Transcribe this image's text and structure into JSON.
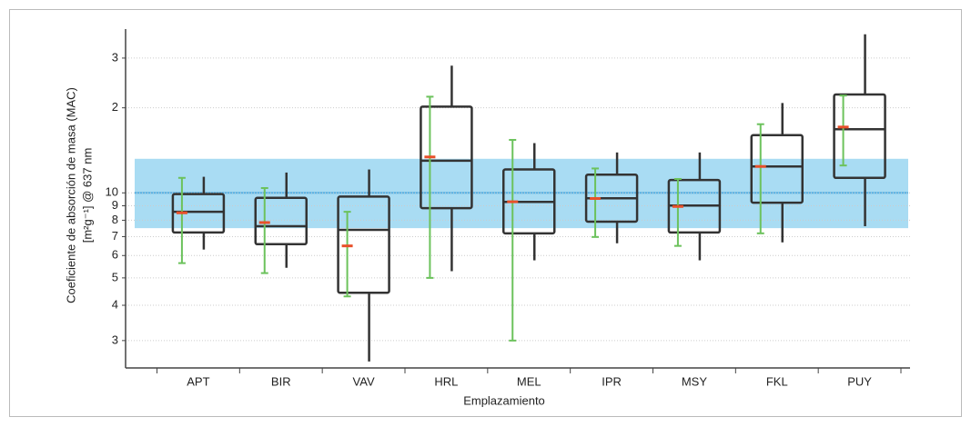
{
  "chart_data": {
    "type": "box",
    "y_label": [
      "Coeficiente de absorción de masa (MAC)",
      "[m²g⁻¹] @ 637 nm"
    ],
    "x_label": "Emplazamiento",
    "categories": [
      "APT",
      "BIR",
      "VAV",
      "HRL",
      "MEL",
      "IPR",
      "MSY",
      "FKL",
      "PUY"
    ],
    "boxes": [
      {
        "low": 6.3,
        "q1": 7.24,
        "median": 8.57,
        "q3": 9.9,
        "high": 11.4,
        "mean": 8.5,
        "err_low": 5.64,
        "err_high": 11.3
      },
      {
        "low": 5.43,
        "q1": 6.58,
        "median": 7.62,
        "q3": 9.6,
        "high": 11.8,
        "mean": 7.85,
        "err_low": 5.2,
        "err_high": 10.4
      },
      {
        "low": 2.53,
        "q1": 4.43,
        "median": 7.4,
        "q3": 9.7,
        "high": 12.1,
        "mean": 6.49,
        "err_low": 4.3,
        "err_high": 8.57
      },
      {
        "low": 5.28,
        "q1": 8.83,
        "median": 13.0,
        "q3": 20.2,
        "high": 28.2,
        "mean": 13.4,
        "err_low": 5.0,
        "err_high": 21.9
      },
      {
        "low": 5.77,
        "q1": 7.19,
        "median": 9.29,
        "q3": 12.1,
        "high": 15.0,
        "mean": 9.3,
        "err_low": 3.0,
        "err_high": 15.4
      },
      {
        "low": 6.63,
        "q1": 7.91,
        "median": 9.57,
        "q3": 11.6,
        "high": 13.9,
        "mean": 9.55,
        "err_low": 6.98,
        "err_high": 12.2
      },
      {
        "low": 5.77,
        "q1": 7.24,
        "median": 9.02,
        "q3": 11.1,
        "high": 13.9,
        "mean": 8.95,
        "err_low": 6.49,
        "err_high": 11.2
      },
      {
        "low": 6.68,
        "q1": 9.23,
        "median": 12.4,
        "q3": 16.0,
        "high": 20.8,
        "mean": 12.4,
        "err_low": 7.19,
        "err_high": 17.5
      },
      {
        "low": 7.62,
        "q1": 11.3,
        "median": 16.8,
        "q3": 22.3,
        "high": 36.4,
        "mean": 17.1,
        "err_low": 12.5,
        "err_high": 22.1
      }
    ],
    "box_color": "#333333",
    "mean_color": "#e8502a",
    "error_color": "#6cc25c",
    "reference_band": [
      7.5,
      13.2
    ],
    "band_color": "#a9dcf3",
    "reference_line": 10,
    "line_color": "#58b0e3",
    "log_scale": true,
    "grid": true,
    "ylim": [
      2.4,
      38
    ],
    "yticks": [
      3,
      4,
      5,
      6,
      7,
      8,
      9,
      10,
      {
        "value": 20,
        "label": "2"
      },
      {
        "value": 30,
        "label": "3"
      }
    ]
  }
}
